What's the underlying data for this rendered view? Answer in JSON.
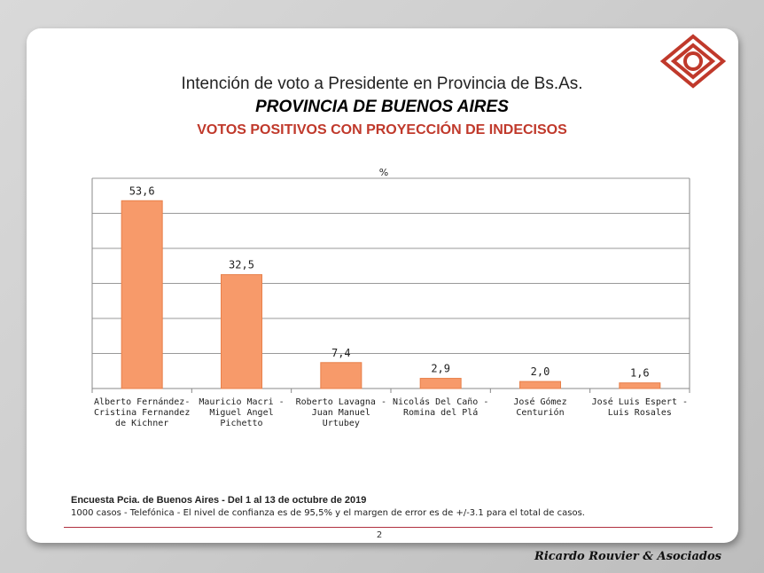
{
  "header": {
    "title": "Intención de voto a Presidente en Provincia de Bs.As.",
    "subtitle": "PROVINCIA DE BUENOS AIRES",
    "subtitle2": "VOTOS POSITIVOS CON PROYECCIÓN DE INDECISOS"
  },
  "logo": {
    "icon": "diamond-logo-icon",
    "color": "#c0392b"
  },
  "chart_data": {
    "type": "bar",
    "unit_label": "%",
    "categories": [
      [
        "Alberto Fernández-",
        "Cristina Fernandez",
        "de Kichner"
      ],
      [
        "Mauricio Macri -",
        "Miguel Angel",
        "Pichetto"
      ],
      [
        "Roberto Lavagna -",
        "Juan Manuel",
        "Urtubey"
      ],
      [
        "Nicolás Del Caño -",
        "Romina del Plá"
      ],
      [
        "José Gómez",
        "Centurión"
      ],
      [
        "José Luis Espert -",
        "Luis Rosales"
      ]
    ],
    "values": [
      53.6,
      32.5,
      7.4,
      2.9,
      2.0,
      1.6
    ],
    "value_labels": [
      "53,6",
      "32,5",
      "7,4",
      "2,9",
      "2,0",
      "1,6"
    ],
    "ylim": [
      0,
      60
    ],
    "grid": true,
    "bar_color": "#f79a6a",
    "bar_edge_color": "#e8804a"
  },
  "footer": {
    "survey": "Encuesta Pcia. de Buenos Aires - Del 1 al 13 de octubre de 2019",
    "note": "1000 casos - Telefónica  - El nivel de confianza es de 95,5% y el margen de error es de +/-3.1 para el total de casos.",
    "page_number": "2",
    "credit": "Ricardo Rouvier & Asociados"
  }
}
